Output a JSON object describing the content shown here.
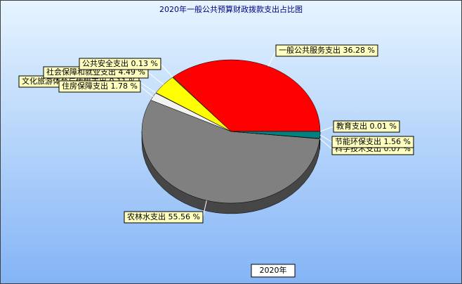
{
  "chart_data": {
    "type": "pie3d",
    "title": "2020年一般公共预算财政拨款支出占比图",
    "categories": [
      "教育支出",
      "一般公共服务支出",
      "公共安全支出",
      "社会保障和就业支出",
      "文化旅游体育与传媒支出",
      "住房保障支出",
      "农林水支出",
      "科学技术支出",
      "节能环保支出"
    ],
    "values": [
      0.01,
      36.28,
      0.13,
      4.49,
      0.11,
      1.78,
      55.56,
      0.07,
      1.56
    ],
    "value_labels": [
      "0.01 %",
      "36.28 %",
      "0.13 %",
      "4.49 %",
      "0.11 %",
      "1.78 %",
      "55.56 %",
      "0.07 %",
      "1.56 %"
    ],
    "colors": [
      "#0000ff",
      "#ff0000",
      "#00c000",
      "#ffff00",
      "#c0c0c0",
      "#f2f2f2",
      "#808080",
      "#800080",
      "#008080"
    ],
    "x_label": "2020年"
  }
}
